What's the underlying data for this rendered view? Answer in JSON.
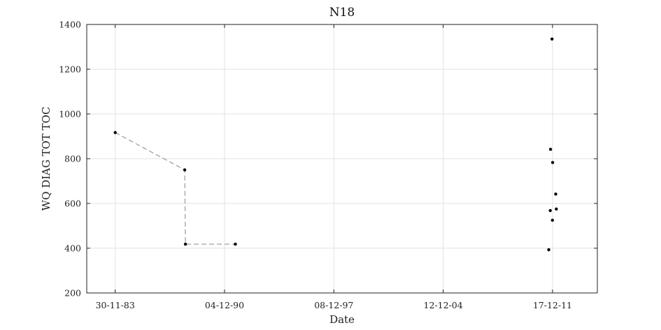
{
  "chart_data": {
    "type": "scatter",
    "title": "N18",
    "xlabel": "Date",
    "ylabel": "WQ DIAG TOT TOC",
    "xlim": [
      "1982-02-01",
      "2014-11-01"
    ],
    "ylim": [
      200,
      1400
    ],
    "x_ticks": [
      {
        "date": "1983-11-30",
        "label": "30-11-83"
      },
      {
        "date": "1990-12-04",
        "label": "04-12-90"
      },
      {
        "date": "1997-12-08",
        "label": "08-12-97"
      },
      {
        "date": "2004-12-12",
        "label": "12-12-04"
      },
      {
        "date": "2011-12-17",
        "label": "17-12-11"
      }
    ],
    "y_ticks": [
      200,
      400,
      600,
      800,
      1000,
      1200,
      1400
    ],
    "grid": true,
    "marker_color": "#000000",
    "line_color": "#9a9a9a",
    "series": [
      {
        "connected": true,
        "points": [
          {
            "x": "1983-11-30",
            "y": 917
          },
          {
            "x": "1988-05-15",
            "y": 750
          },
          {
            "x": "1988-06-01",
            "y": 418
          },
          {
            "x": "1991-08-15",
            "y": 418
          }
        ]
      },
      {
        "connected": false,
        "points": [
          {
            "x": "2011-12-05",
            "y": 1335
          },
          {
            "x": "2011-11-01",
            "y": 842
          },
          {
            "x": "2011-12-20",
            "y": 783
          },
          {
            "x": "2012-03-01",
            "y": 642
          },
          {
            "x": "2012-03-15",
            "y": 575
          },
          {
            "x": "2011-10-25",
            "y": 568
          },
          {
            "x": "2011-12-15",
            "y": 525
          },
          {
            "x": "2011-09-20",
            "y": 393
          }
        ]
      }
    ]
  }
}
